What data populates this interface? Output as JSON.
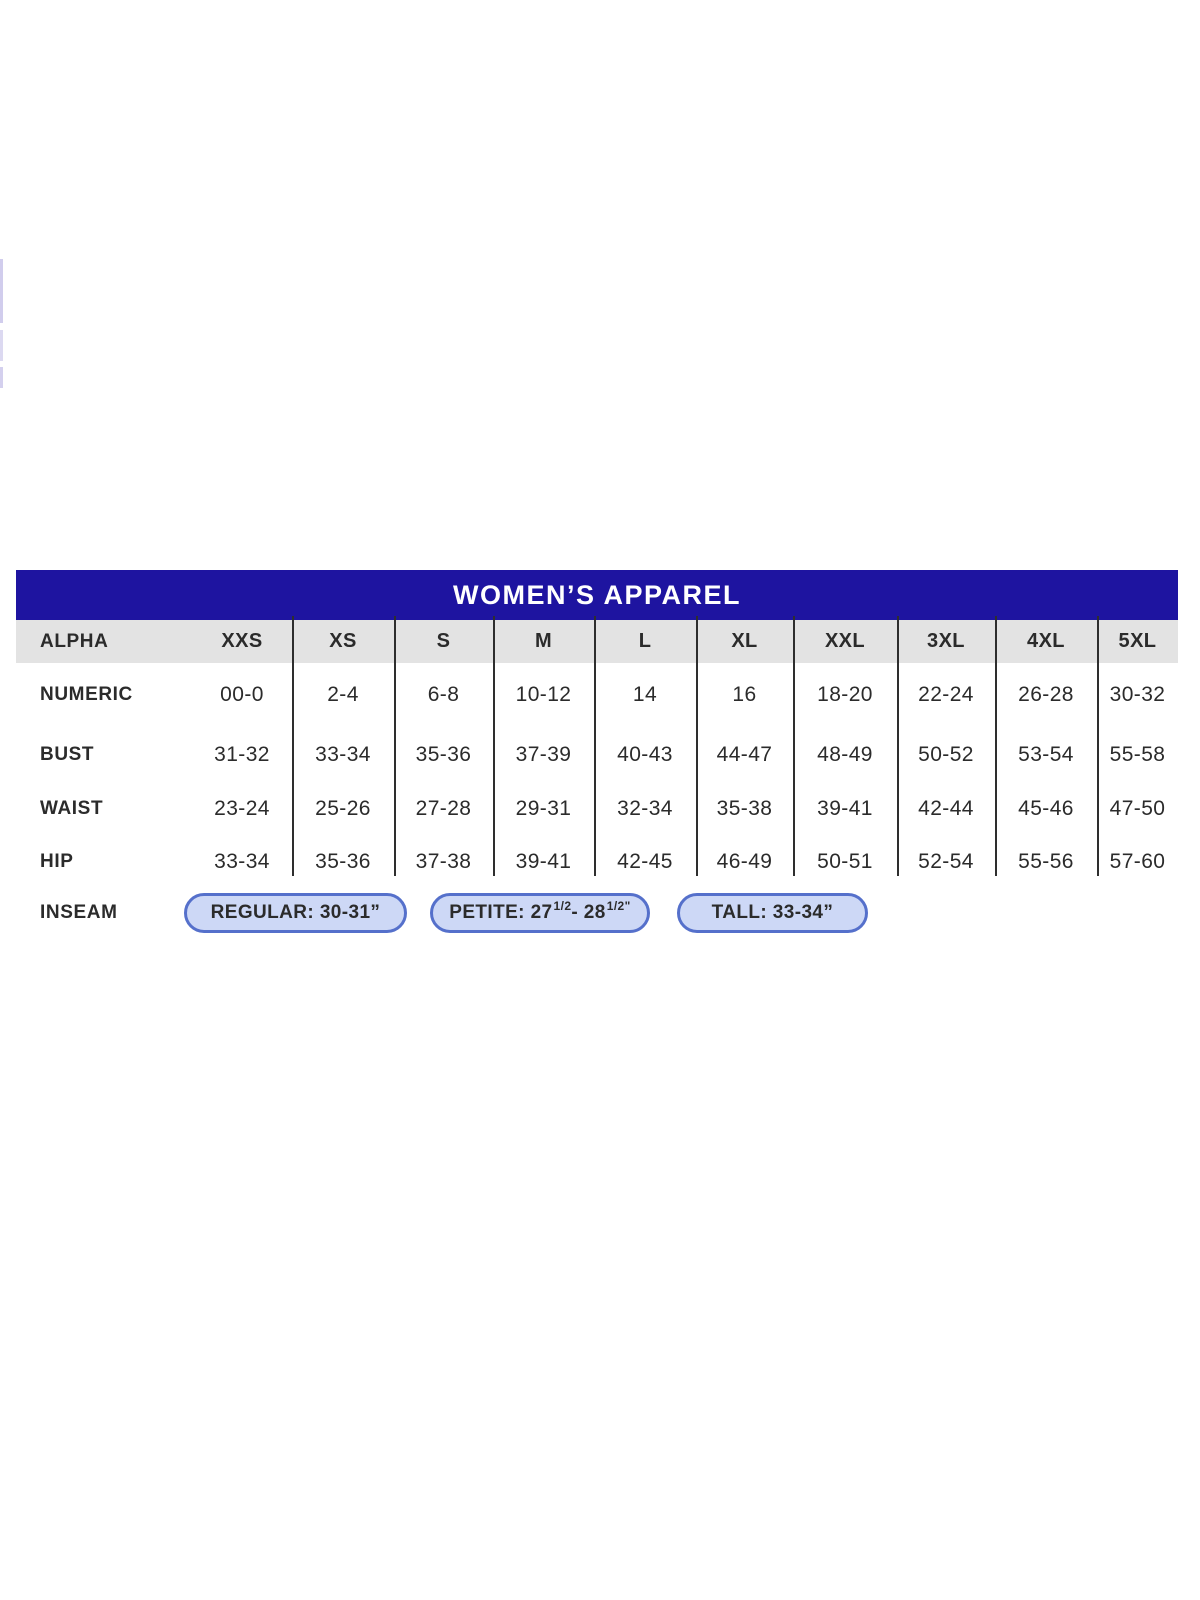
{
  "colors": {
    "header_bg": "#1e14a0",
    "header_text": "#ffffff",
    "subheader_bg": "#e3e3e3",
    "body_text": "#2b2b2b",
    "divider": "#2e2e2e",
    "pill_fill": "#cdd8f6",
    "pill_border": "#5570cb",
    "edge_artifact": "#c9c4ea"
  },
  "chart_data": {
    "type": "table",
    "title": "WOMEN’S APPAREL",
    "header": {
      "label": "ALPHA",
      "sizes": [
        "XXS",
        "XS",
        "S",
        "M",
        "L",
        "XL",
        "XXL",
        "3XL",
        "4XL",
        "5XL"
      ]
    },
    "rows": [
      {
        "label": "NUMERIC",
        "values": [
          "00-0",
          "2-4",
          "6-8",
          "10-12",
          "14",
          "16",
          "18-20",
          "22-24",
          "26-28",
          "30-32"
        ]
      },
      {
        "label": "BUST",
        "values": [
          "31-32",
          "33-34",
          "35-36",
          "37-39",
          "40-43",
          "44-47",
          "48-49",
          "50-52",
          "53-54",
          "55-58"
        ]
      },
      {
        "label": "WAIST",
        "values": [
          "23-24",
          "25-26",
          "27-28",
          "29-31",
          "32-34",
          "35-38",
          "39-41",
          "42-44",
          "45-46",
          "47-50"
        ]
      },
      {
        "label": "HIP",
        "values": [
          "33-34",
          "35-36",
          "37-38",
          "39-41",
          "42-45",
          "46-49",
          "50-51",
          "52-54",
          "55-56",
          "57-60"
        ]
      }
    ],
    "inseam": {
      "label": "INSEAM",
      "regular": "REGULAR: 30-31”",
      "petite_parts": {
        "p1": "PETITE: 27",
        "sup1": "1/2",
        "p2": " - 28",
        "sup2": "1/2\""
      },
      "tall": "TALL: 33-34”"
    }
  }
}
